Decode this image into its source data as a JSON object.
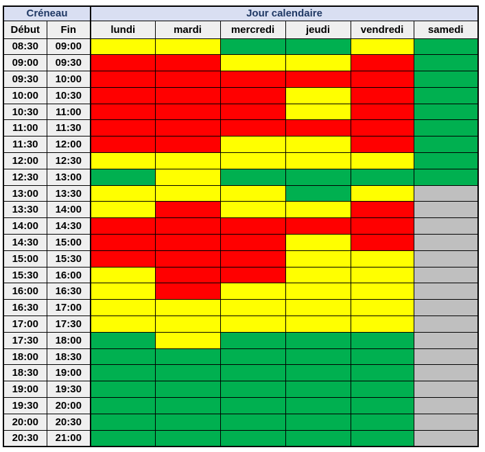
{
  "header": {
    "creneau": "Créneau",
    "jour_calendaire": "Jour calendaire",
    "debut": "Début",
    "fin": "Fin",
    "days": [
      "lundi",
      "mardi",
      "mercredi",
      "jeudi",
      "vendredi",
      "samedi"
    ]
  },
  "colors": {
    "red": "#FF0000",
    "yellow": "#FFFF00",
    "green": "#00B050",
    "gray": "#BFBFBF",
    "header_band_bg": "#D9DFF2",
    "header_band_text": "#1F3864",
    "subheader_bg": "#EFEFEF",
    "time_cell_bg": "#EFEFEF",
    "border": "#000000"
  },
  "chart_data": {
    "type": "heatmap",
    "title": "Créneau / Jour calendaire",
    "columns": [
      "lundi",
      "mardi",
      "mercredi",
      "jeudi",
      "vendredi",
      "samedi"
    ],
    "row_axis_labels": [
      "Début",
      "Fin"
    ],
    "palette": {
      "red": "#FF0000",
      "yellow": "#FFFF00",
      "green": "#00B050",
      "gray": "#BFBFBF"
    },
    "slots": [
      {
        "debut": "08:30",
        "fin": "09:00",
        "cells": [
          "yellow",
          "yellow",
          "green",
          "green",
          "yellow",
          "green"
        ]
      },
      {
        "debut": "09:00",
        "fin": "09:30",
        "cells": [
          "red",
          "red",
          "yellow",
          "yellow",
          "red",
          "green"
        ]
      },
      {
        "debut": "09:30",
        "fin": "10:00",
        "cells": [
          "red",
          "red",
          "red",
          "red",
          "red",
          "green"
        ]
      },
      {
        "debut": "10:00",
        "fin": "10:30",
        "cells": [
          "red",
          "red",
          "red",
          "yellow",
          "red",
          "green"
        ]
      },
      {
        "debut": "10:30",
        "fin": "11:00",
        "cells": [
          "red",
          "red",
          "red",
          "yellow",
          "red",
          "green"
        ]
      },
      {
        "debut": "11:00",
        "fin": "11:30",
        "cells": [
          "red",
          "red",
          "red",
          "red",
          "red",
          "green"
        ]
      },
      {
        "debut": "11:30",
        "fin": "12:00",
        "cells": [
          "red",
          "red",
          "yellow",
          "yellow",
          "red",
          "green"
        ]
      },
      {
        "debut": "12:00",
        "fin": "12:30",
        "cells": [
          "yellow",
          "yellow",
          "yellow",
          "yellow",
          "yellow",
          "green"
        ]
      },
      {
        "debut": "12:30",
        "fin": "13:00",
        "cells": [
          "green",
          "yellow",
          "green",
          "green",
          "green",
          "green"
        ]
      },
      {
        "debut": "13:00",
        "fin": "13:30",
        "cells": [
          "yellow",
          "yellow",
          "yellow",
          "green",
          "yellow",
          "gray"
        ]
      },
      {
        "debut": "13:30",
        "fin": "14:00",
        "cells": [
          "yellow",
          "red",
          "yellow",
          "yellow",
          "red",
          "gray"
        ]
      },
      {
        "debut": "14:00",
        "fin": "14:30",
        "cells": [
          "red",
          "red",
          "red",
          "red",
          "red",
          "gray"
        ]
      },
      {
        "debut": "14:30",
        "fin": "15:00",
        "cells": [
          "red",
          "red",
          "red",
          "yellow",
          "red",
          "gray"
        ]
      },
      {
        "debut": "15:00",
        "fin": "15:30",
        "cells": [
          "red",
          "red",
          "red",
          "yellow",
          "yellow",
          "gray"
        ]
      },
      {
        "debut": "15:30",
        "fin": "16:00",
        "cells": [
          "yellow",
          "red",
          "red",
          "yellow",
          "yellow",
          "gray"
        ]
      },
      {
        "debut": "16:00",
        "fin": "16:30",
        "cells": [
          "yellow",
          "red",
          "yellow",
          "yellow",
          "yellow",
          "gray"
        ]
      },
      {
        "debut": "16:30",
        "fin": "17:00",
        "cells": [
          "yellow",
          "yellow",
          "yellow",
          "yellow",
          "yellow",
          "gray"
        ]
      },
      {
        "debut": "17:00",
        "fin": "17:30",
        "cells": [
          "yellow",
          "yellow",
          "yellow",
          "yellow",
          "yellow",
          "gray"
        ]
      },
      {
        "debut": "17:30",
        "fin": "18:00",
        "cells": [
          "green",
          "yellow",
          "green",
          "green",
          "green",
          "gray"
        ]
      },
      {
        "debut": "18:00",
        "fin": "18:30",
        "cells": [
          "green",
          "green",
          "green",
          "green",
          "green",
          "gray"
        ]
      },
      {
        "debut": "18:30",
        "fin": "19:00",
        "cells": [
          "green",
          "green",
          "green",
          "green",
          "green",
          "gray"
        ]
      },
      {
        "debut": "19:00",
        "fin": "19:30",
        "cells": [
          "green",
          "green",
          "green",
          "green",
          "green",
          "gray"
        ]
      },
      {
        "debut": "19:30",
        "fin": "20:00",
        "cells": [
          "green",
          "green",
          "green",
          "green",
          "green",
          "gray"
        ]
      },
      {
        "debut": "20:00",
        "fin": "20:30",
        "cells": [
          "green",
          "green",
          "green",
          "green",
          "green",
          "gray"
        ]
      },
      {
        "debut": "20:30",
        "fin": "21:00",
        "cells": [
          "green",
          "green",
          "green",
          "green",
          "green",
          "gray"
        ]
      }
    ]
  }
}
